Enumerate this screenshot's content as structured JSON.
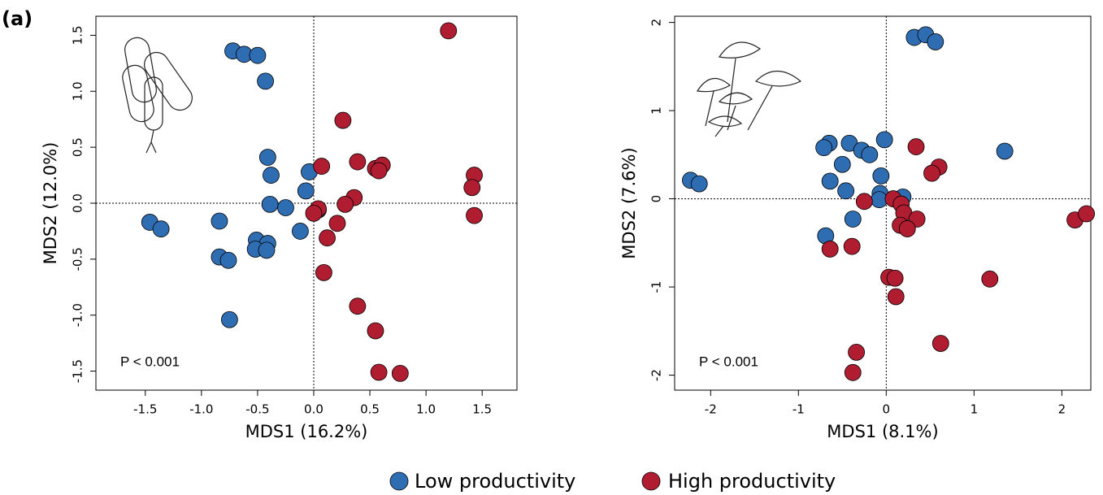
{
  "panel_label": "(a)",
  "chart_data": [
    {
      "type": "scatter",
      "xlabel": "MDS1 (16.2%)",
      "ylabel": "MDS2 (12.0%)",
      "annotation": "P < 0.001",
      "xlim": [
        -1.94,
        1.81
      ],
      "ylim": [
        -1.67,
        1.67
      ],
      "xticks": [
        -1.5,
        {
          "value": -1,
          "label": "-1.0"
        },
        -0.5,
        {
          "value": 0,
          "label": "0.0"
        },
        0.5,
        {
          "value": 1,
          "label": "1.0"
        },
        1.5
      ],
      "yticks": [
        -1.5,
        {
          "value": -1,
          "label": "-1.0"
        },
        -0.5,
        {
          "value": 0,
          "label": "0.0"
        },
        0.5,
        {
          "value": 1,
          "label": "1.0"
        },
        1.5
      ],
      "zero_lines": true,
      "series": [
        {
          "name": "Low productivity",
          "color": "#2f6db3",
          "x": [
            -0.72,
            -0.62,
            -0.5,
            -0.43,
            -0.41,
            -0.38,
            -0.04,
            -0.07,
            -0.25,
            -0.39,
            0.04,
            -1.46,
            -1.36,
            -0.84,
            -0.12,
            -0.51,
            -0.41,
            -0.52,
            -0.42,
            -0.84,
            -0.76,
            -0.75
          ],
          "values": [
            1.36,
            1.33,
            1.32,
            1.09,
            0.41,
            0.25,
            0.28,
            0.11,
            -0.04,
            -0.01,
            -0.06,
            -0.17,
            -0.23,
            -0.16,
            -0.25,
            -0.33,
            -0.36,
            -0.41,
            -0.42,
            -0.48,
            -0.51,
            -1.04
          ]
        },
        {
          "name": "High productivity",
          "color": "#b01c30",
          "x": [
            1.2,
            0.26,
            0.07,
            0.39,
            0.55,
            0.61,
            0.58,
            1.43,
            1.41,
            1.43,
            0.36,
            0.28,
            0.04,
            0.0,
            0.21,
            0.12,
            0.09,
            0.39,
            0.55,
            0.58,
            0.77
          ],
          "values": [
            1.54,
            0.74,
            0.33,
            0.37,
            0.31,
            0.34,
            0.29,
            0.25,
            0.14,
            -0.11,
            0.05,
            -0.01,
            -0.05,
            -0.09,
            -0.18,
            -0.31,
            -0.62,
            -0.92,
            -1.14,
            -1.51,
            -1.52
          ]
        }
      ]
    },
    {
      "type": "scatter",
      "xlabel": "MDS1 (8.1%)",
      "ylabel": "MDS2 (7.6%)",
      "annotation": "P < 0.001",
      "xlim": [
        -2.41,
        2.33
      ],
      "ylim": [
        -2.17,
        2.07
      ],
      "xticks": [
        -2,
        -1,
        0,
        1,
        2
      ],
      "yticks": [
        -2,
        -1,
        0,
        1,
        2
      ],
      "zero_lines": true,
      "series": [
        {
          "color": "#2f6db3",
          "x": [
            0.32,
            0.45,
            0.56,
            1.35,
            -2.23,
            -2.13,
            -0.65,
            -0.71,
            -0.42,
            -0.28,
            -0.19,
            -0.02,
            -0.5,
            -0.64,
            -0.06,
            -0.46,
            -0.07,
            0.19,
            -0.08,
            -0.38,
            -0.69
          ],
          "values": [
            1.83,
            1.86,
            1.78,
            0.54,
            0.21,
            0.17,
            0.63,
            0.58,
            0.63,
            0.55,
            0.5,
            0.67,
            0.39,
            0.2,
            0.26,
            0.09,
            0.06,
            0.02,
            -0.01,
            -0.23,
            -0.42
          ]
        },
        {
          "color": "#b01c30",
          "x": [
            0.34,
            0.6,
            0.52,
            -0.25,
            0.08,
            0.17,
            0.2,
            0.35,
            0.16,
            0.24,
            2.15,
            2.28,
            -0.64,
            -0.39,
            0.03,
            0.1,
            0.11,
            1.18,
            0.62,
            -0.34,
            -0.38
          ],
          "values": [
            0.59,
            0.36,
            0.29,
            -0.03,
            0.0,
            -0.06,
            -0.16,
            -0.23,
            -0.3,
            -0.34,
            -0.24,
            -0.17,
            -0.57,
            -0.54,
            -0.89,
            -0.9,
            -1.11,
            -0.91,
            -1.64,
            -1.74,
            -1.97
          ]
        }
      ]
    }
  ]
}
